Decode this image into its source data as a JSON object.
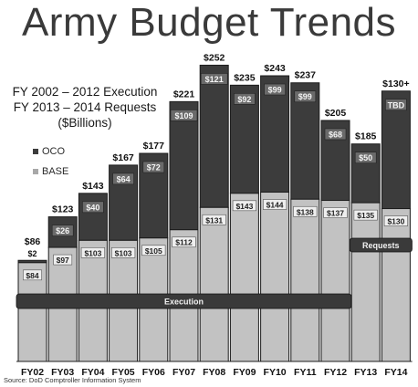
{
  "chart_data": {
    "type": "bar",
    "stacked": true,
    "title": "Army Budget Trends",
    "subtitle_lines": [
      "FY 2002 – 2012 Execution",
      "FY 2013 – 2014 Requests",
      "($Billions)"
    ],
    "categories": [
      "FY02",
      "FY03",
      "FY04",
      "FY05",
      "FY06",
      "FY07",
      "FY08",
      "FY09",
      "FY10",
      "FY11",
      "FY12",
      "FY13",
      "FY14"
    ],
    "series": [
      {
        "name": "BASE",
        "values": [
          84,
          97,
          103,
          103,
          105,
          112,
          131,
          143,
          144,
          138,
          137,
          135,
          130
        ],
        "labels": [
          "$84",
          "$97",
          "$103",
          "$103",
          "$105",
          "$112",
          "$131",
          "$143",
          "$144",
          "$138",
          "$137",
          "$135",
          "$130"
        ]
      },
      {
        "name": "OCO",
        "values": [
          2,
          26,
          40,
          64,
          72,
          109,
          121,
          92,
          99,
          99,
          68,
          50,
          null
        ],
        "labels": [
          "$2",
          "$26",
          "$40",
          "$64",
          "$72",
          "$109",
          "$121",
          "$92",
          "$99",
          "$99",
          "$68",
          "$50",
          "TBD"
        ]
      }
    ],
    "totals": [
      "$86",
      "$123",
      "$143",
      "$167",
      "$177",
      "$221",
      "$252",
      "$235",
      "$243",
      "$237",
      "$205",
      "$185",
      "$130+"
    ],
    "annotations": [
      {
        "text": "Execution",
        "from": "FY02",
        "to": "FY12"
      },
      {
        "text": "Requests",
        "from": "FY13",
        "to": "FY14"
      }
    ],
    "source": "Source: DoD Comptroller Information System",
    "legend_position": "left",
    "ylim": [
      0,
      260
    ],
    "colors": {
      "base": "#c2c2c2",
      "oco": "#3c3c3c",
      "bar_edge": "#1c1c1c",
      "banner": "#3a3a3a"
    }
  },
  "legend": {
    "oco": "OCO",
    "base": "BASE"
  }
}
